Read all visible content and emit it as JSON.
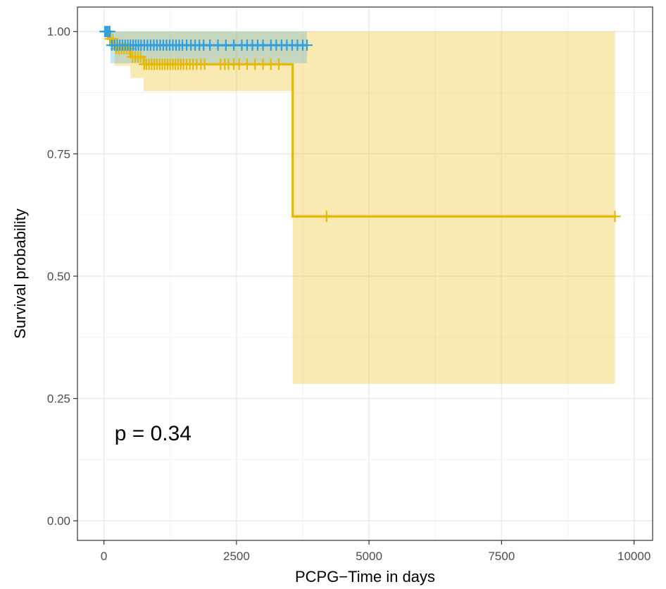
{
  "chart_data": {
    "type": "line",
    "subtype": "kaplan-meier",
    "title": "",
    "xlabel": "PCPG−Time in days",
    "ylabel": "Survival probability",
    "xlim": [
      -500,
      10350
    ],
    "ylim": [
      -0.04,
      1.05
    ],
    "x_ticks": [
      0,
      2500,
      5000,
      7500,
      10000
    ],
    "x_tick_labels": [
      "0",
      "2500",
      "5000",
      "7500",
      "10000"
    ],
    "y_ticks": [
      0,
      0.25,
      0.5,
      0.75,
      1
    ],
    "y_tick_labels": [
      "0.00",
      "0.25",
      "0.50",
      "0.75",
      "1.00"
    ],
    "grid": true,
    "legend": "none",
    "annotation": {
      "text": "p = 0.34",
      "x": 200,
      "y": 0.18
    },
    "series": [
      {
        "color": "#e7b800",
        "steps": [
          [
            0,
            1.0
          ],
          [
            80,
            0.985
          ],
          [
            200,
            0.965
          ],
          [
            500,
            0.948
          ],
          [
            750,
            0.933
          ],
          [
            3560,
            0.933
          ],
          [
            3560,
            0.622
          ],
          [
            9640,
            0.622
          ]
        ],
        "ci": [
          {
            "x0": 200,
            "x1": 500,
            "lo": 0.93,
            "hi": 1.0
          },
          {
            "x0": 500,
            "x1": 750,
            "lo": 0.905,
            "hi": 1.0
          },
          {
            "x0": 750,
            "x1": 3560,
            "lo": 0.878,
            "hi": 1.0
          },
          {
            "x0": 3560,
            "x1": 9640,
            "lo": 0.28,
            "hi": 1.0
          }
        ],
        "censor_x": [
          40,
          120,
          170,
          230,
          280,
          330,
          380,
          430,
          480,
          540,
          590,
          640,
          690,
          760,
          800,
          850,
          900,
          950,
          1000,
          1050,
          1100,
          1150,
          1200,
          1250,
          1300,
          1350,
          1400,
          1450,
          1500,
          1560,
          1620,
          1680,
          1750,
          1830,
          1900,
          2200,
          2280,
          2350,
          2450,
          2550,
          2700,
          2850,
          3000,
          3150,
          3300,
          4200,
          9640
        ]
      },
      {
        "color": "#2e9fdf",
        "steps": [
          [
            0,
            1.0
          ],
          [
            120,
            0.972
          ],
          [
            3830,
            0.972
          ]
        ],
        "ci": [
          {
            "x0": 120,
            "x1": 3830,
            "lo": 0.935,
            "hi": 1.0
          }
        ],
        "censor_x": [
          20,
          50,
          80,
          110,
          150,
          200,
          250,
          300,
          350,
          400,
          450,
          500,
          550,
          600,
          650,
          700,
          760,
          820,
          880,
          940,
          1000,
          1060,
          1120,
          1180,
          1240,
          1300,
          1360,
          1420,
          1480,
          1560,
          1640,
          1720,
          1800,
          1880,
          2000,
          2150,
          2300,
          2450,
          2600,
          2700,
          2800,
          2900,
          3000,
          3150,
          3250,
          3350,
          3450,
          3550,
          3650,
          3750,
          3830
        ]
      }
    ]
  }
}
